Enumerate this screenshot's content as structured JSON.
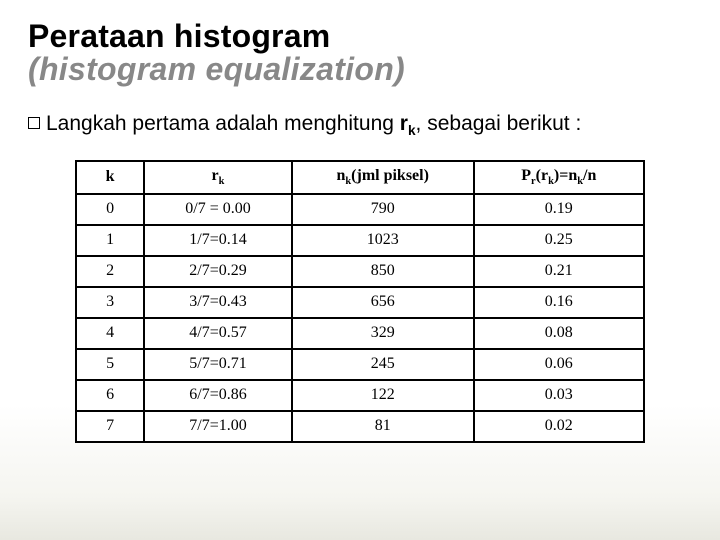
{
  "title": {
    "line1": "Perataan histogram",
    "line2": "(histogram equalization)"
  },
  "intro": {
    "pre": "Langkah pertama adalah menghitung ",
    "sym_base": "r",
    "sym_sub": "k",
    "post": ", sebagai berikut :"
  },
  "table": {
    "headers": {
      "h1": "k",
      "h2_base": "r",
      "h2_sub": "k",
      "h3_pre_base": "n",
      "h3_pre_sub": "k",
      "h3_rest": "(jml piksel)",
      "h4_Pbase": "P",
      "h4_Psub": "r",
      "h4_lpar": "(",
      "h4_rbase": "r",
      "h4_rsub": "k",
      "h4_rpar_eq": ")=",
      "h4_nbase": "n",
      "h4_nsub": "k",
      "h4_tail": "/n"
    },
    "rows": [
      {
        "k": "0",
        "rk": "0/7 = 0.00",
        "nk": "790",
        "pr": "0.19"
      },
      {
        "k": "1",
        "rk": "1/7=0.14",
        "nk": "1023",
        "pr": "0.25"
      },
      {
        "k": "2",
        "rk": "2/7=0.29",
        "nk": "850",
        "pr": "0.21"
      },
      {
        "k": "3",
        "rk": "3/7=0.43",
        "nk": "656",
        "pr": "0.16"
      },
      {
        "k": "4",
        "rk": "4/7=0.57",
        "nk": "329",
        "pr": "0.08"
      },
      {
        "k": "5",
        "rk": "5/7=0.71",
        "nk": "245",
        "pr": "0.06"
      },
      {
        "k": "6",
        "rk": "6/7=0.86",
        "nk": "122",
        "pr": "0.03"
      },
      {
        "k": "7",
        "rk": "7/7=1.00",
        "nk": "81",
        "pr": "0.02"
      }
    ]
  },
  "colors": {
    "background": "#ffffff",
    "title_main": "#000000",
    "title_sub": "#888888",
    "text": "#000000",
    "border": "#000000"
  }
}
